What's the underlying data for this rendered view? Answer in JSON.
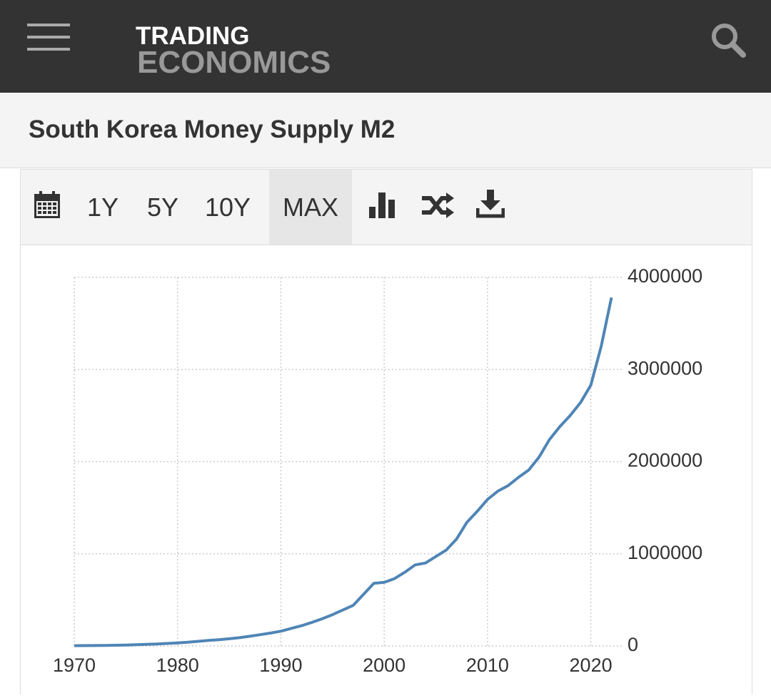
{
  "header": {
    "logo": [
      "TRADING",
      "ECONOMICS"
    ]
  },
  "toolbar": {
    "buttons": [
      "1Y",
      "5Y",
      "10Y",
      "MAX"
    ],
    "active": 3
  },
  "chart_data": {
    "type": "line",
    "title": "South Korea Money Supply M2",
    "x": [
      1970,
      1971,
      1972,
      1973,
      1974,
      1975,
      1976,
      1977,
      1978,
      1979,
      1980,
      1981,
      1982,
      1983,
      1984,
      1985,
      1986,
      1987,
      1988,
      1989,
      1990,
      1991,
      1992,
      1993,
      1994,
      1995,
      1996,
      1997,
      1998,
      1999,
      2000,
      2001,
      2002,
      2003,
      2004,
      2005,
      2006,
      2007,
      2008,
      2009,
      2010,
      2011,
      2012,
      2013,
      2014,
      2015,
      2016,
      2017,
      2018,
      2019,
      2020,
      2021,
      2022
    ],
    "values": [
      3000,
      4000,
      5000,
      6000,
      8000,
      10000,
      13000,
      17000,
      22000,
      27000,
      33000,
      40000,
      50000,
      60000,
      68000,
      78000,
      90000,
      105000,
      122000,
      140000,
      160000,
      190000,
      220000,
      255000,
      295000,
      340000,
      390000,
      440000,
      560000,
      680000,
      690000,
      730000,
      800000,
      880000,
      900000,
      970000,
      1040000,
      1160000,
      1340000,
      1460000,
      1590000,
      1680000,
      1740000,
      1830000,
      1910000,
      2050000,
      2240000,
      2380000,
      2500000,
      2640000,
      2830000,
      3250000,
      3780000
    ],
    "color": "#4f85b6",
    "xlim": [
      1970,
      2023
    ],
    "xticks": [
      1970,
      1980,
      1990,
      2000,
      2010,
      2020
    ],
    "ylim": [
      0,
      4000000
    ],
    "yticks": [
      0,
      1000000,
      2000000,
      3000000,
      4000000
    ],
    "grid": true
  }
}
